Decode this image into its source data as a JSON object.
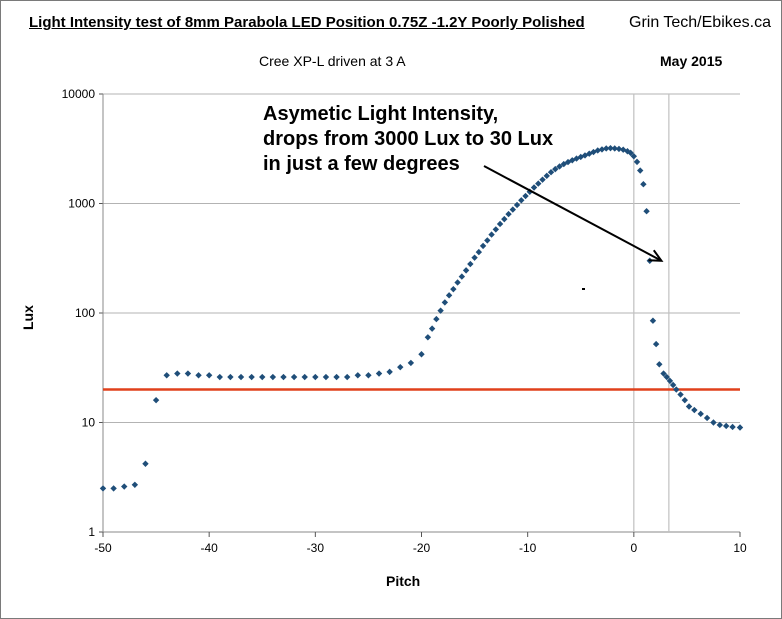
{
  "chart_data": {
    "type": "scatter",
    "title": "Light Intensity test of 8mm Parabola LED Position 0.75Z -1.2Y Poorly Polished",
    "subtitle": "Cree XP-L driven at 3 A",
    "brand": "Grin Tech/Ebikes.ca",
    "date": "May 2015",
    "xlabel": "Pitch",
    "ylabel": "Lux",
    "xlim": [
      -50,
      10
    ],
    "ylim": [
      1,
      10000
    ],
    "yscale": "log",
    "x_ticks": [
      "-50",
      "-40",
      "-30",
      "-20",
      "-10",
      "0",
      "10"
    ],
    "y_ticks": [
      "1",
      "10",
      "100",
      "1000",
      "10000"
    ],
    "grid": "horizontal major",
    "reference_line_y": 20,
    "vertical_lines_x": [
      0,
      3.3
    ],
    "annotation": {
      "lines": [
        "Asymetic Light Intensity,",
        "drops from 3000 Lux to 30 Lux",
        "in just a few degrees"
      ],
      "arrow_to": [
        2.6,
        300
      ]
    },
    "colors": {
      "points": "#1f4e79",
      "reference_line": "#e0401c",
      "grid": "#b3b3b3",
      "vertical_lines": "#c0c0c0"
    },
    "series": [
      {
        "x": [
          -50,
          -49,
          -48,
          -47,
          -46,
          -45,
          -44,
          -43,
          -42,
          -41,
          -40,
          -39,
          -38,
          -37,
          -36,
          -35,
          -34,
          -33,
          -32,
          -31,
          -30,
          -29,
          -28,
          -27,
          -26,
          -25,
          -24,
          -23,
          -22,
          -21,
          -20,
          -19.4,
          -19,
          -18.6,
          -18.2,
          -17.8,
          -17.4,
          -17,
          -16.6,
          -16.2,
          -15.8,
          -15.4,
          -15,
          -14.6,
          -14.2,
          -13.8,
          -13.4,
          -13,
          -12.6,
          -12.2,
          -11.8,
          -11.4,
          -11,
          -10.6,
          -10.2,
          -9.8,
          -9.4,
          -9,
          -8.6,
          -8.2,
          -7.8,
          -7.4,
          -7,
          -6.6,
          -6.2,
          -5.8,
          -5.4,
          -5,
          -4.6,
          -4.2,
          -3.8,
          -3.4,
          -3,
          -2.6,
          -2.2,
          -1.8,
          -1.4,
          -1,
          -0.6,
          -0.3,
          0,
          0.3,
          0.6,
          0.9,
          1.2,
          1.5,
          1.8,
          2.1,
          2.4,
          2.8,
          3.1,
          3.4,
          3.7,
          4,
          4.4,
          4.8,
          5.2,
          5.7,
          6.3,
          6.9,
          7.5,
          8.1,
          8.7,
          9.3,
          10
        ],
        "y": [
          2.5,
          2.5,
          2.6,
          2.7,
          4.2,
          16,
          27,
          28,
          28,
          27,
          27,
          26,
          26,
          26,
          26,
          26,
          26,
          26,
          26,
          26,
          26,
          26,
          26,
          26,
          27,
          27,
          28,
          29,
          32,
          35,
          42,
          60,
          72,
          88,
          105,
          125,
          145,
          165,
          190,
          215,
          245,
          280,
          320,
          360,
          410,
          460,
          520,
          580,
          650,
          720,
          800,
          880,
          970,
          1070,
          1170,
          1280,
          1400,
          1520,
          1650,
          1790,
          1930,
          2060,
          2180,
          2290,
          2390,
          2480,
          2570,
          2660,
          2750,
          2850,
          2950,
          3050,
          3120,
          3180,
          3200,
          3180,
          3150,
          3100,
          3000,
          2900,
          2700,
          2400,
          2000,
          1500,
          850,
          300,
          85,
          52,
          34,
          28,
          26,
          24,
          22,
          20,
          18,
          16,
          14,
          13,
          12,
          11,
          10,
          9.5,
          9.3,
          9.1,
          9.0
        ]
      }
    ]
  }
}
